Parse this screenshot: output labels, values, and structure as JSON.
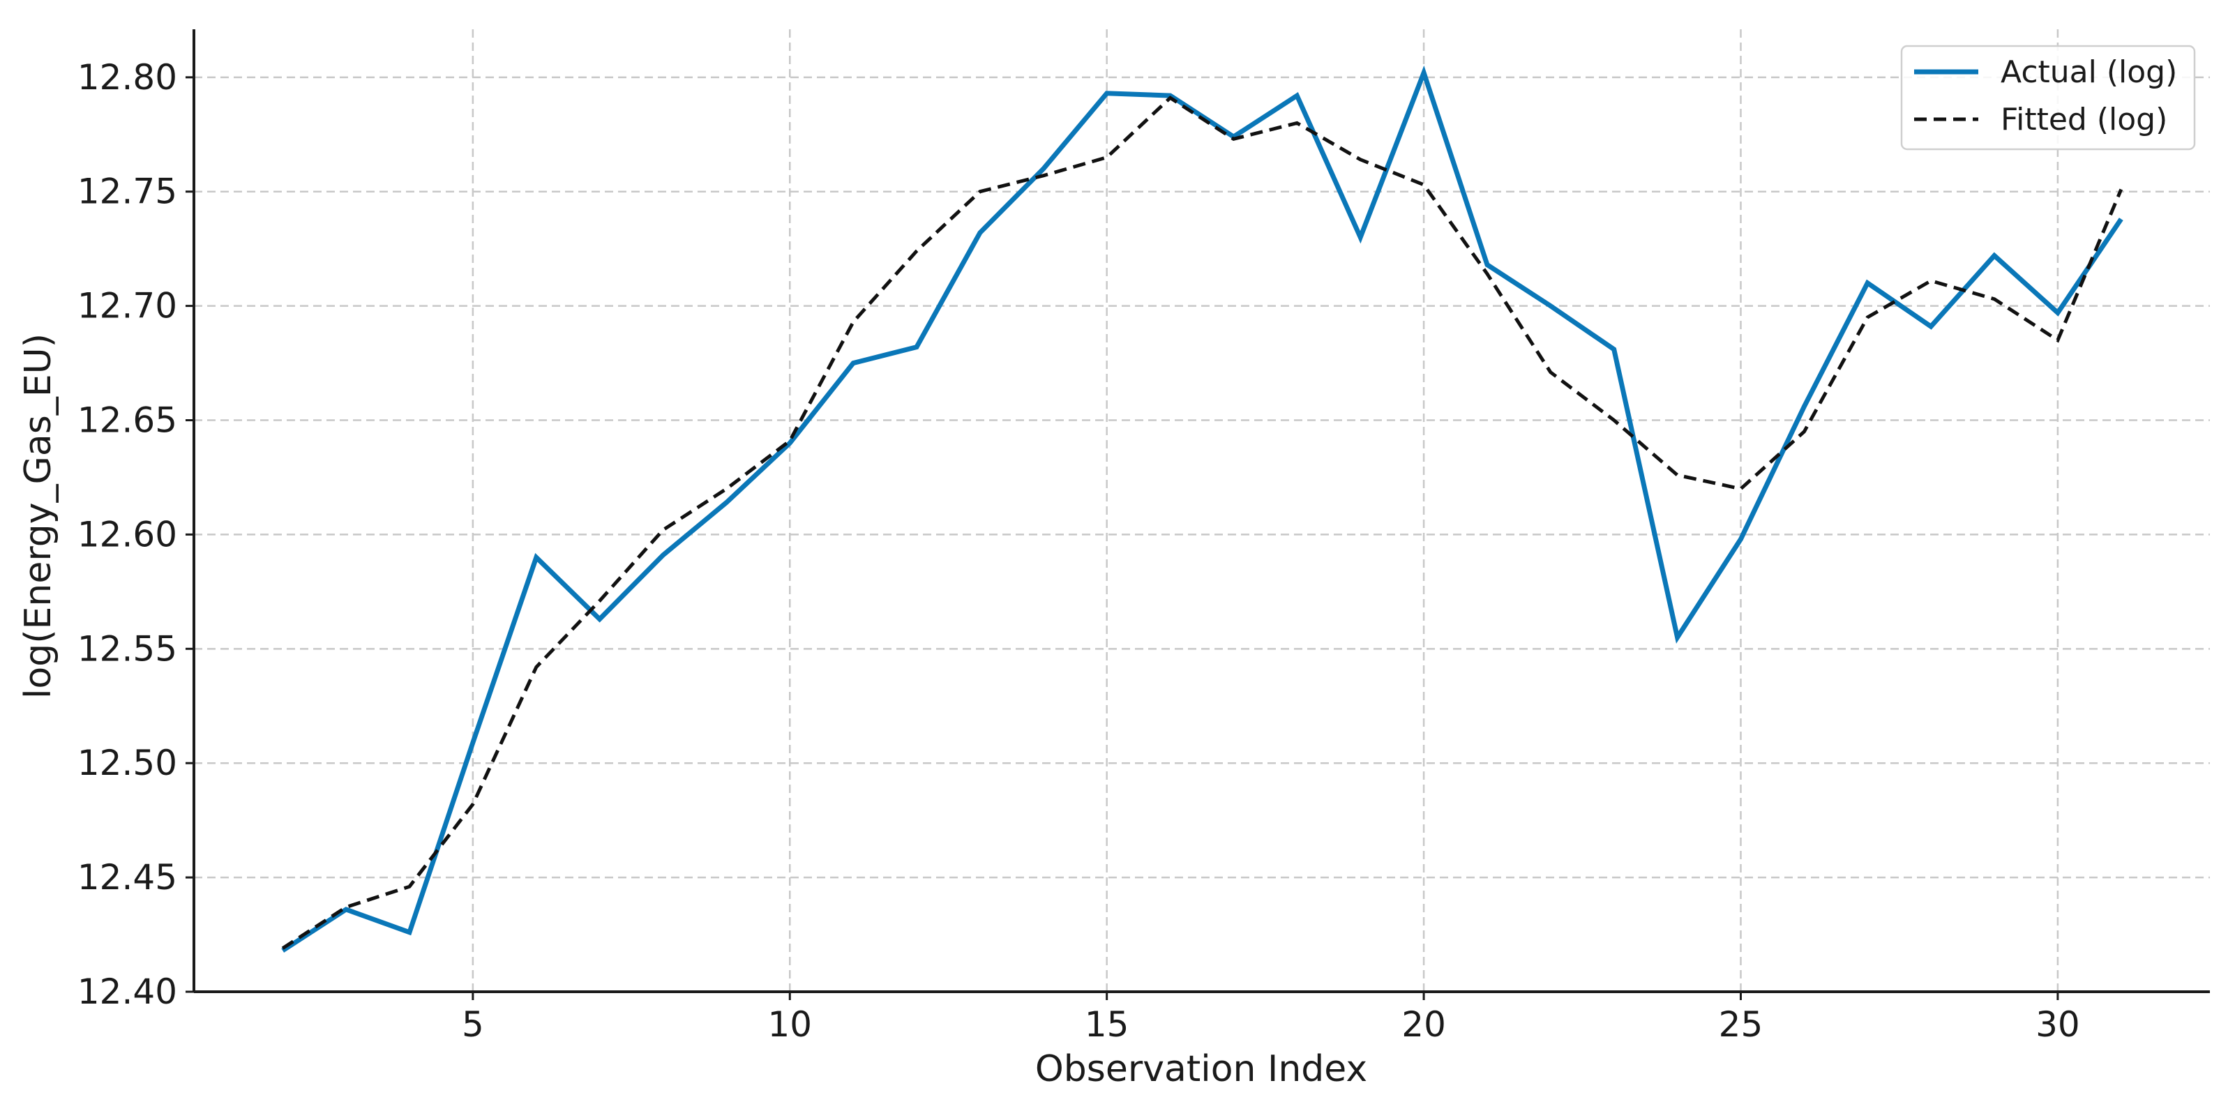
{
  "colors": {
    "actual": "#0a77b8",
    "fitted": "#111111",
    "grid": "#c8c8c8",
    "axis": "#1a1a1a"
  },
  "chart_data": {
    "type": "line",
    "title": "",
    "xlabel": "Observation Index",
    "ylabel": "log(Energy_Gas_EU)",
    "xlim": [
      0.6,
      32.4
    ],
    "ylim": [
      12.4,
      12.821
    ],
    "grid": true,
    "legend_position": "top-right",
    "x_ticks": [
      5,
      10,
      15,
      20,
      25,
      30
    ],
    "x_tick_labels": [
      "5",
      "10",
      "15",
      "20",
      "25",
      "30"
    ],
    "y_ticks": [
      12.4,
      12.45,
      12.5,
      12.55,
      12.6,
      12.65,
      12.7,
      12.75,
      12.8
    ],
    "y_tick_labels": [
      "12.40",
      "12.45",
      "12.50",
      "12.55",
      "12.60",
      "12.65",
      "12.70",
      "12.75",
      "12.80"
    ],
    "x": [
      2,
      3,
      4,
      5,
      6,
      7,
      8,
      9,
      10,
      11,
      12,
      13,
      14,
      15,
      16,
      17,
      18,
      19,
      20,
      21,
      22,
      23,
      24,
      25,
      26,
      27,
      28,
      29,
      30,
      31
    ],
    "series": [
      {
        "name": "Actual (log)",
        "style": "solid",
        "color": "#0a77b8",
        "values": [
          12.418,
          12.436,
          12.426,
          12.509,
          12.59,
          12.563,
          12.591,
          12.614,
          12.64,
          12.675,
          12.682,
          12.732,
          12.76,
          12.793,
          12.792,
          12.774,
          12.792,
          12.73,
          12.802,
          12.718,
          12.7,
          12.681,
          12.555,
          12.598,
          12.656,
          12.71,
          12.691,
          12.722,
          12.697,
          12.738
        ]
      },
      {
        "name": "Fitted (log)",
        "style": "dashed",
        "color": "#111111",
        "values": [
          12.419,
          12.437,
          12.446,
          12.482,
          12.542,
          12.571,
          12.602,
          12.62,
          12.641,
          12.693,
          12.724,
          12.75,
          12.757,
          12.765,
          12.791,
          12.773,
          12.78,
          12.764,
          12.753,
          12.714,
          12.671,
          12.65,
          12.626,
          12.62,
          12.645,
          12.695,
          12.711,
          12.703,
          12.685,
          12.751
        ]
      }
    ]
  }
}
